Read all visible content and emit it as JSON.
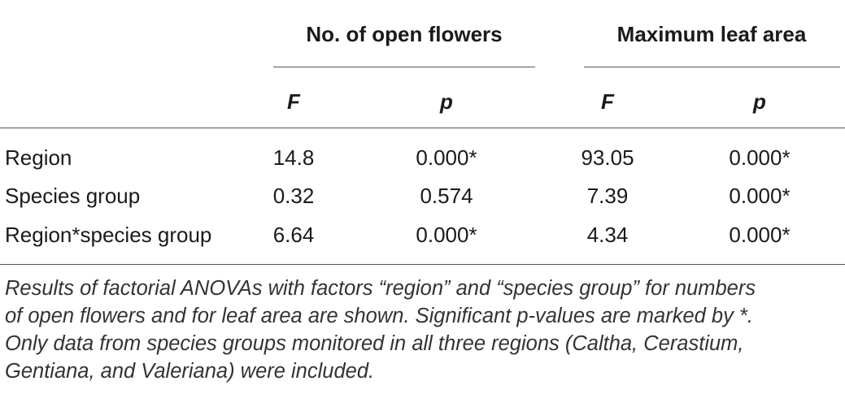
{
  "table": {
    "group_headers": [
      "No. of open flowers",
      "Maximum leaf area"
    ],
    "sub_headers": [
      "F",
      "p",
      "F",
      "p"
    ],
    "rows": [
      {
        "label": "Region",
        "values": [
          "14.8",
          "0.000*",
          "93.05",
          "0.000*"
        ]
      },
      {
        "label": "Species group",
        "values": [
          "0.32",
          "0.574",
          "7.39",
          "0.000*"
        ]
      },
      {
        "label": "Region*species group",
        "values": [
          "6.64",
          "0.000*",
          "4.34",
          "0.000*"
        ]
      }
    ]
  },
  "caption": {
    "lines": [
      "Results of factorial ANOVAs with factors “region” and “species group” for numbers",
      "of open flowers and for leaf area are shown. Significant p-values are marked by *.",
      "Only data from species groups monitored in all three regions (Caltha, Cerastium,",
      "Gentiana, and Valeriana) were included."
    ]
  }
}
